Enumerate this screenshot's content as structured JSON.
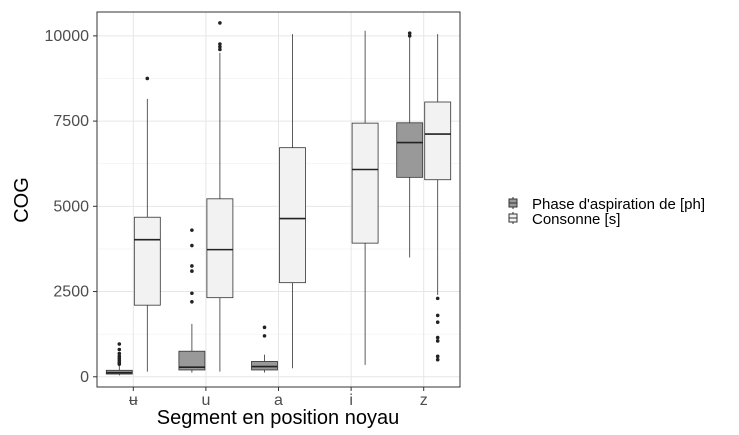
{
  "chart_data": {
    "type": "box",
    "title": "",
    "xlabel": "Segment en position noyau",
    "ylabel": "COG",
    "ylim": [
      -300,
      10700
    ],
    "yticks": [
      0,
      2500,
      5000,
      7500,
      10000
    ],
    "yticklabels": [
      "0",
      "2500",
      "5000",
      "7500",
      "10000"
    ],
    "categories": [
      "ʉ",
      "u",
      "a",
      "i",
      "z"
    ],
    "grid": true,
    "legend_position": "right",
    "series": [
      {
        "name": "Phase d'aspiration de [ph]",
        "color": "#999999",
        "boxes": [
          {
            "category": "ʉ",
            "q1": 80,
            "median": 120,
            "q3": 190,
            "whisker_low": 40,
            "whisker_high": 320,
            "outliers": [
              370,
              420,
              480,
              540,
              600,
              680,
              800,
              960
            ]
          },
          {
            "category": "u",
            "q1": 200,
            "median": 280,
            "q3": 750,
            "whisker_low": 120,
            "whisker_high": 1550,
            "outliers": [
              2200,
              2450,
              3100,
              3250,
              3850,
              4300
            ]
          },
          {
            "category": "a",
            "q1": 200,
            "median": 300,
            "q3": 450,
            "whisker_low": 120,
            "whisker_high": 650,
            "outliers": [
              1200,
              1450
            ]
          },
          null,
          {
            "category": "z",
            "q1": 5850,
            "median": 6870,
            "q3": 7450,
            "whisker_low": 3500,
            "whisker_high": 9950,
            "outliers": [
              10000,
              10080
            ]
          }
        ]
      },
      {
        "name": "Consonne [s]",
        "color": "#f2f2f2",
        "boxes": [
          {
            "category": "ʉ",
            "q1": 2100,
            "median": 4020,
            "q3": 4680,
            "whisker_low": 150,
            "whisker_high": 8150,
            "outliers": [
              8750
            ]
          },
          {
            "category": "u",
            "q1": 2320,
            "median": 3730,
            "q3": 5220,
            "whisker_low": 150,
            "whisker_high": 9500,
            "outliers": [
              9600,
              9680,
              9760,
              10380
            ]
          },
          {
            "category": "a",
            "q1": 2760,
            "median": 4640,
            "q3": 6720,
            "whisker_low": 250,
            "whisker_high": 10050,
            "outliers": []
          },
          {
            "category": "i",
            "q1": 3920,
            "median": 6080,
            "q3": 7440,
            "whisker_low": 350,
            "whisker_high": 10150,
            "outliers": []
          },
          {
            "category": "z",
            "q1": 5780,
            "median": 7120,
            "q3": 8060,
            "whisker_low": 2400,
            "whisker_high": 10050,
            "outliers": [
              2300,
              1800,
              1600,
              1150,
              1050,
              600,
              500
            ]
          }
        ]
      }
    ]
  }
}
